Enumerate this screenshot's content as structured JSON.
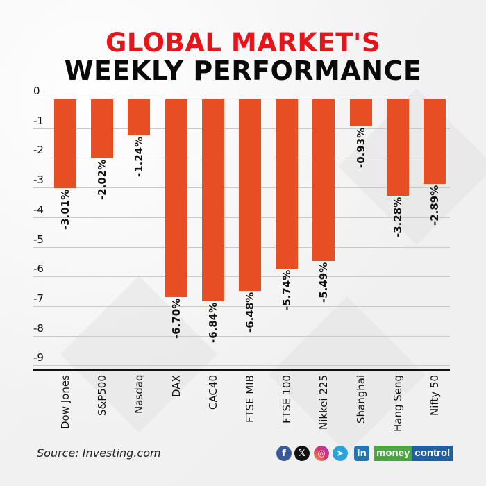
{
  "header": {
    "title_line1": "GLOBAL MARKET'S",
    "title_line2": "WEEKLY PERFORMANCE"
  },
  "footer": {
    "source": "Source: Investing.com",
    "social_icons": [
      "facebook-icon",
      "x-icon",
      "instagram-icon",
      "telegram-icon",
      "linkedin-icon"
    ],
    "brand_part1": "money",
    "brand_part2": "control"
  },
  "colors": {
    "bar": "#e84e24",
    "title_red": "#e8141b",
    "title_black": "#0a0a0a"
  },
  "chart_data": {
    "type": "bar",
    "title": "GLOBAL MARKET'S WEEKLY PERFORMANCE",
    "xlabel": "",
    "ylabel": "",
    "categories": [
      "Dow Jones",
      "S&P500",
      "Nasdaq",
      "DAX",
      "CAC40",
      "FTSE MIB",
      "FTSE 100",
      "Nikkei 225",
      "Shanghai",
      "Hang Seng",
      "Nifty 50"
    ],
    "values": [
      -3.01,
      -2.02,
      -1.24,
      -6.7,
      -6.84,
      -6.48,
      -5.74,
      -5.49,
      -0.93,
      -3.28,
      -2.89
    ],
    "value_labels": [
      "-3.01%",
      "-2.02%",
      "-1.24%",
      "-6.70%",
      "-6.84%",
      "-6.48%",
      "-5.74%",
      "-5.49%",
      "-0.93%",
      "-3.28%",
      "-2.89%"
    ],
    "yticks": [
      "0",
      "-1",
      "-2",
      "-3",
      "-4",
      "-5",
      "-6",
      "-7",
      "-8",
      "-9"
    ],
    "ylim": [
      -9.4,
      0
    ],
    "grid": true,
    "legend": null
  }
}
